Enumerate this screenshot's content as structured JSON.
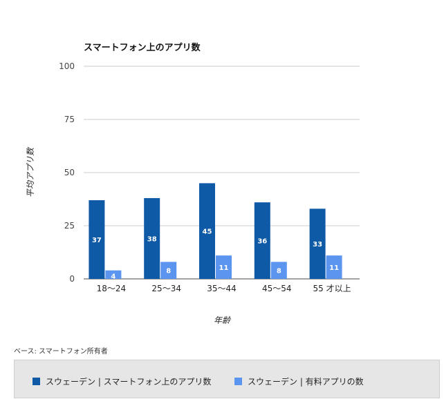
{
  "chart_data": {
    "type": "bar",
    "title": "スマートフォン上のアプリ数",
    "ylabel": "平均アプリ数",
    "xlabel": "年齢",
    "ylim": [
      0,
      100
    ],
    "yticks": [
      0,
      25,
      50,
      75,
      100
    ],
    "categories": [
      "18〜24",
      "25〜34",
      "35〜44",
      "45〜54",
      "55 才以上"
    ],
    "series": [
      {
        "name": "スウェーデン | スマートフォン上のアプリ数",
        "values": [
          37,
          38,
          45,
          36,
          33
        ],
        "color": "#0f5aa6"
      },
      {
        "name": "スウェーデン | 有料アプリの数",
        "values": [
          4,
          8,
          11,
          8,
          11
        ],
        "color": "#5b95f0"
      }
    ],
    "grid": true,
    "legend": "bottom"
  },
  "note": "ベース: スマートフォン所有者"
}
